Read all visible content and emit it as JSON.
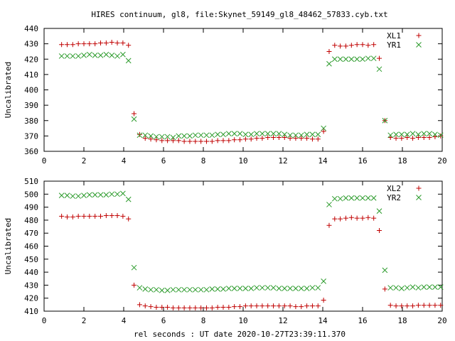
{
  "title": "HIRES continuum, gl8, file:Skynet_59149_gl8_48462_57833.cyb.txt",
  "xlabel": "rel seconds : UT date 2020-10-27T23:39:11.370",
  "colors": {
    "series1": "#c00000",
    "series2": "#2a9a2a",
    "axis": "#000000"
  },
  "chart_data": [
    {
      "type": "scatter",
      "ylabel": "Uncalibrated",
      "xlim": [
        0,
        20
      ],
      "ylim": [
        360,
        440
      ],
      "xticks": [
        0,
        2,
        4,
        6,
        8,
        10,
        12,
        14,
        16,
        18,
        20
      ],
      "yticks": [
        360,
        370,
        380,
        390,
        400,
        410,
        420,
        430,
        440
      ],
      "legend_position": "top-right",
      "grid": false,
      "series": [
        {
          "name": "XL1",
          "marker": "+",
          "color": "#c00000",
          "x": [
            0.88,
            1.16,
            1.44,
            1.72,
            2.0,
            2.28,
            2.56,
            2.84,
            3.12,
            3.4,
            3.68,
            3.96,
            4.24,
            4.52,
            4.8,
            5.08,
            5.36,
            5.64,
            5.92,
            6.2,
            6.48,
            6.76,
            7.04,
            7.32,
            7.6,
            7.88,
            8.16,
            8.44,
            8.72,
            9.0,
            9.28,
            9.56,
            9.84,
            10.12,
            10.4,
            10.68,
            10.96,
            11.24,
            11.52,
            11.8,
            12.08,
            12.36,
            12.64,
            12.92,
            13.2,
            13.48,
            13.76,
            14.04,
            14.32,
            14.6,
            14.88,
            15.16,
            15.44,
            15.72,
            16.0,
            16.28,
            16.56,
            16.84,
            17.12,
            17.4,
            17.68,
            17.96,
            18.24,
            18.52,
            18.8,
            19.08,
            19.36,
            19.64,
            19.92
          ],
          "y": [
            429.5,
            429.5,
            429.5,
            430,
            430,
            430,
            430,
            430.5,
            430.5,
            431,
            430.5,
            430.5,
            429,
            384.5,
            371,
            368.5,
            368,
            367.5,
            367,
            367,
            367,
            367,
            366.5,
            366.5,
            366.5,
            366.5,
            366.5,
            366.5,
            367,
            367,
            367,
            367.5,
            367.5,
            368,
            368,
            368.5,
            368.5,
            369,
            369,
            369,
            369,
            368.5,
            368.5,
            368.5,
            368.5,
            368,
            368,
            373,
            425,
            429,
            428.5,
            428.5,
            429,
            429.5,
            429.5,
            429,
            429.5,
            420.5,
            380,
            369,
            368.5,
            368.5,
            369,
            368.5,
            369,
            369,
            369,
            369.5,
            370
          ]
        },
        {
          "name": "YR1",
          "marker": "x",
          "color": "#2a9a2a",
          "x": [
            0.88,
            1.16,
            1.44,
            1.72,
            2.0,
            2.28,
            2.56,
            2.84,
            3.12,
            3.4,
            3.68,
            3.96,
            4.24,
            4.52,
            4.8,
            5.08,
            5.36,
            5.64,
            5.92,
            6.2,
            6.48,
            6.76,
            7.04,
            7.32,
            7.6,
            7.88,
            8.16,
            8.44,
            8.72,
            9.0,
            9.28,
            9.56,
            9.84,
            10.12,
            10.4,
            10.68,
            10.96,
            11.24,
            11.52,
            11.8,
            12.08,
            12.36,
            12.64,
            12.92,
            13.2,
            13.48,
            13.76,
            14.04,
            14.32,
            14.6,
            14.88,
            15.16,
            15.44,
            15.72,
            16.0,
            16.28,
            16.56,
            16.84,
            17.12,
            17.4,
            17.68,
            17.96,
            18.24,
            18.52,
            18.8,
            19.08,
            19.36,
            19.64,
            19.92
          ],
          "y": [
            422,
            422,
            422,
            422,
            422.5,
            423,
            422.5,
            422.5,
            423,
            422.5,
            422,
            423,
            419,
            381,
            370.5,
            370.5,
            370,
            369.5,
            369.5,
            369.5,
            369,
            370,
            370,
            370,
            370.5,
            370.5,
            370.5,
            370.5,
            371,
            371,
            371.5,
            371.5,
            371.5,
            371,
            371,
            371.5,
            371.5,
            371.5,
            371.5,
            371.5,
            371,
            370.5,
            370.5,
            370.5,
            371,
            371,
            371,
            375,
            417,
            420,
            420,
            420,
            420,
            420,
            420,
            420.5,
            420.5,
            413.5,
            380,
            370.5,
            371,
            371,
            371,
            371.5,
            371,
            371.5,
            371.5,
            371,
            370.5
          ]
        }
      ]
    },
    {
      "type": "scatter",
      "ylabel": "Uncalibrated",
      "xlabel": "rel seconds : UT date 2020-10-27T23:39:11.370",
      "xlim": [
        0,
        20
      ],
      "ylim": [
        410,
        510
      ],
      "xticks": [
        0,
        2,
        4,
        6,
        8,
        10,
        12,
        14,
        16,
        18,
        20
      ],
      "yticks": [
        410,
        420,
        430,
        440,
        450,
        460,
        470,
        480,
        490,
        500,
        510
      ],
      "legend_position": "top-right",
      "grid": false,
      "series": [
        {
          "name": "XL2",
          "marker": "+",
          "color": "#c00000",
          "x": [
            0.88,
            1.16,
            1.44,
            1.72,
            2.0,
            2.28,
            2.56,
            2.84,
            3.12,
            3.4,
            3.68,
            3.96,
            4.24,
            4.52,
            4.8,
            5.08,
            5.36,
            5.64,
            5.92,
            6.2,
            6.48,
            6.76,
            7.04,
            7.32,
            7.6,
            7.88,
            8.16,
            8.44,
            8.72,
            9.0,
            9.28,
            9.56,
            9.84,
            10.12,
            10.4,
            10.68,
            10.96,
            11.24,
            11.52,
            11.8,
            12.08,
            12.36,
            12.64,
            12.92,
            13.2,
            13.48,
            13.76,
            14.04,
            14.32,
            14.6,
            14.88,
            15.16,
            15.44,
            15.72,
            16.0,
            16.28,
            16.56,
            16.84,
            17.12,
            17.4,
            17.68,
            17.96,
            18.24,
            18.52,
            18.8,
            19.08,
            19.36,
            19.64,
            19.92
          ],
          "y": [
            483,
            482.5,
            482.5,
            483,
            483,
            483,
            483,
            483,
            483.5,
            483.5,
            483.5,
            483,
            481,
            430,
            415,
            414,
            413.5,
            413,
            413,
            413,
            412.5,
            412.5,
            412.5,
            412.5,
            412.5,
            412.5,
            412.5,
            412.5,
            413,
            413,
            413,
            413.5,
            413.5,
            414,
            414,
            414,
            414,
            414,
            414,
            414,
            414,
            414,
            413.5,
            413.5,
            414,
            414,
            414,
            418.5,
            476,
            481,
            481,
            481.5,
            482,
            481.5,
            481.5,
            482,
            481.5,
            472,
            427,
            414.5,
            414,
            414,
            414,
            414,
            414.5,
            414.5,
            414.5,
            414.5,
            414.5
          ]
        },
        {
          "name": "YR2",
          "marker": "x",
          "color": "#2a9a2a",
          "x": [
            0.88,
            1.16,
            1.44,
            1.72,
            2.0,
            2.28,
            2.56,
            2.84,
            3.12,
            3.4,
            3.68,
            3.96,
            4.24,
            4.52,
            4.8,
            5.08,
            5.36,
            5.64,
            5.92,
            6.2,
            6.48,
            6.76,
            7.04,
            7.32,
            7.6,
            7.88,
            8.16,
            8.44,
            8.72,
            9.0,
            9.28,
            9.56,
            9.84,
            10.12,
            10.4,
            10.68,
            10.96,
            11.24,
            11.52,
            11.8,
            12.08,
            12.36,
            12.64,
            12.92,
            13.2,
            13.48,
            13.76,
            14.04,
            14.32,
            14.6,
            14.88,
            15.16,
            15.44,
            15.72,
            16.0,
            16.28,
            16.56,
            16.84,
            17.12,
            17.4,
            17.68,
            17.96,
            18.24,
            18.52,
            18.8,
            19.08,
            19.36,
            19.64,
            19.92
          ],
          "y": [
            499,
            499,
            498.5,
            498.5,
            499,
            499.5,
            499.5,
            499.5,
            499.5,
            500,
            500,
            500.5,
            496,
            443.5,
            428,
            427,
            426.5,
            426.5,
            426,
            426,
            426.5,
            426.5,
            426.5,
            426.5,
            426.5,
            426.5,
            426.5,
            427,
            427,
            427,
            427.5,
            427.5,
            427.5,
            427.5,
            427.5,
            428,
            428,
            428,
            428,
            427.5,
            427.5,
            427.5,
            427.5,
            427.5,
            427.5,
            428,
            428,
            433,
            492,
            496.5,
            496.5,
            497,
            497,
            497,
            497,
            497,
            497,
            487,
            441.5,
            428,
            428,
            427.5,
            428,
            428.5,
            428,
            428.5,
            428.5,
            428.5,
            428.5
          ]
        }
      ]
    }
  ]
}
